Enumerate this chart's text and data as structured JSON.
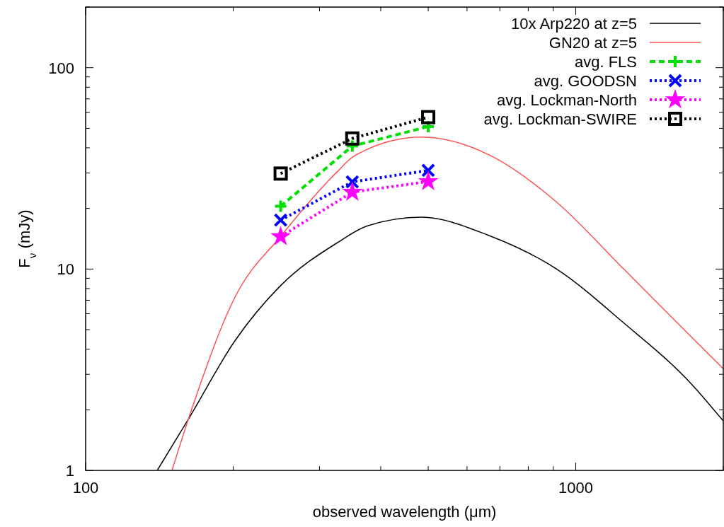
{
  "chart_data": {
    "type": "line",
    "xlabel": "observed wavelength (μm)",
    "ylabel": "F$_{ν}$ (mJy)",
    "log": "xy",
    "xlim": [
      100,
      2000
    ],
    "ylim": [
      1,
      200
    ],
    "xticks": [
      100,
      {
        "value": 200,
        "label": null
      },
      {
        "value": 300,
        "label": null
      },
      {
        "value": 400,
        "label": null
      },
      {
        "value": 500,
        "label": null
      },
      {
        "value": 600,
        "label": null
      },
      {
        "value": 700,
        "label": null
      },
      {
        "value": 800,
        "label": null
      },
      {
        "value": 900,
        "label": null
      },
      1000,
      {
        "value": 2000,
        "label": null
      }
    ],
    "yticks": [
      1,
      {
        "value": 2,
        "label": null
      },
      {
        "value": 3,
        "label": null
      },
      {
        "value": 4,
        "label": null
      },
      {
        "value": 5,
        "label": null
      },
      {
        "value": 6,
        "label": null
      },
      {
        "value": 7,
        "label": null
      },
      {
        "value": 8,
        "label": null
      },
      {
        "value": 9,
        "label": null
      },
      10,
      {
        "value": 20,
        "label": null
      },
      {
        "value": 30,
        "label": null
      },
      {
        "value": 40,
        "label": null
      },
      {
        "value": 50,
        "label": null
      },
      {
        "value": 60,
        "label": null
      },
      {
        "value": 70,
        "label": null
      },
      {
        "value": 80,
        "label": null
      },
      {
        "value": 90,
        "label": null
      },
      100,
      {
        "value": 200,
        "label": null
      }
    ],
    "grid": false,
    "legend": "top right",
    "series": [
      {
        "name": "10x Arp220 at z=5",
        "color": "#000000",
        "marker": "none",
        "line_style": "solid",
        "x": [
          140,
          163,
          202,
          249,
          326,
          376,
          484,
          664,
          914,
          1253,
          1721,
          2000
        ],
        "values": [
          1,
          1.84,
          4.43,
          8.2,
          13.5,
          16.4,
          18.1,
          14.7,
          10,
          5.4,
          2.69,
          1.76
        ]
      },
      {
        "name": "GN20 at z=5",
        "color": "#ff5050",
        "marker": "none",
        "line_style": "solid",
        "x": [
          150,
          165,
          202,
          251,
          326,
          353,
          484,
          664,
          914,
          1253,
          1721,
          2000
        ],
        "values": [
          1,
          2.05,
          7.3,
          14.7,
          30.4,
          36.4,
          45.2,
          37,
          21.5,
          10,
          4.6,
          3.2
        ]
      },
      {
        "name": "avg. FLS",
        "color": "#00e000",
        "marker": "plus",
        "line_style": "dashed",
        "x": [
          250,
          350,
          500
        ],
        "values": [
          20.5,
          40.8,
          51
        ]
      },
      {
        "name": "avg. GOODSN",
        "color": "#0000ff",
        "marker": "cross",
        "line_style": "dotted",
        "x": [
          250,
          350,
          500
        ],
        "values": [
          17.5,
          27.1,
          30.9
        ]
      },
      {
        "name": "avg. Lockman-North",
        "color": "#ff00ff",
        "marker": "star",
        "line_style": "dotted",
        "x": [
          250,
          350,
          500
        ],
        "values": [
          14.5,
          24.1,
          27.2
        ]
      },
      {
        "name": "avg. Lockman-SWIRE",
        "color": "#000000",
        "marker": "square",
        "line_style": "dotted",
        "x": [
          250,
          350,
          500
        ],
        "values": [
          29.8,
          44.5,
          56.8
        ]
      }
    ]
  }
}
